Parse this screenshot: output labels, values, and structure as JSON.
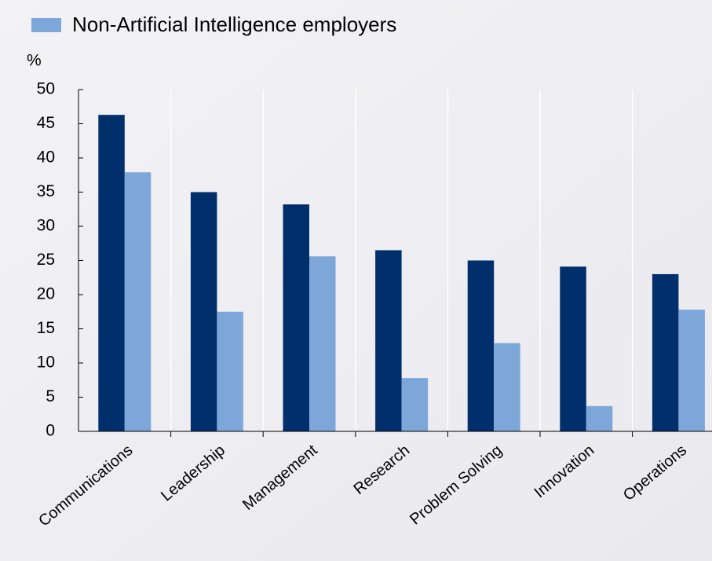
{
  "chart_data": {
    "type": "bar",
    "y_label": "%",
    "categories": [
      "Communications",
      "Leadership",
      "Management",
      "Research",
      "Problem Solving",
      "Innovation",
      "Operations"
    ],
    "series": [
      {
        "color": "#002f6c",
        "values": [
          46.3,
          35,
          33.2,
          26.5,
          25,
          24.1,
          23
        ]
      },
      {
        "name": "Non-Artificial Intelligence employers",
        "color": "#7da7d9",
        "values": [
          37.9,
          17.5,
          25.6,
          7.8,
          12.9,
          3.7,
          17.8
        ]
      }
    ],
    "ylim": [
      0,
      50
    ],
    "yticks": [
      0,
      5,
      10,
      15,
      20,
      25,
      30,
      35,
      40,
      45,
      50
    ],
    "grid": true
  }
}
